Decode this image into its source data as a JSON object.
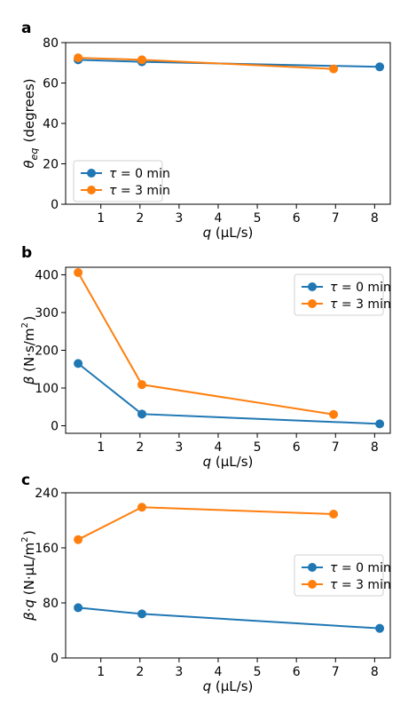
{
  "figure": {
    "colors": {
      "tau0": "#1f77b4",
      "tau3": "#ff7f0e"
    }
  },
  "chart_data": [
    {
      "type": "line",
      "panel_label": "a",
      "xlabel": "q (µL/s)",
      "ylabel": "θeq (degrees)",
      "xlim": [
        0.1,
        8.4
      ],
      "ylim": [
        0,
        80
      ],
      "xticks": [
        1,
        2,
        3,
        4,
        5,
        6,
        7,
        8
      ],
      "yticks": [
        0,
        20,
        40,
        60,
        80
      ],
      "legend": "lower-left",
      "series": [
        {
          "name": "τ = 0 min",
          "color": "#1f77b4",
          "x": [
            0.42,
            2.05,
            8.13
          ],
          "y": [
            71.5,
            70.5,
            68.0
          ]
        },
        {
          "name": "τ = 3 min",
          "color": "#ff7f0e",
          "x": [
            0.42,
            2.05,
            6.95
          ],
          "y": [
            72.5,
            71.5,
            67.0
          ]
        }
      ]
    },
    {
      "type": "line",
      "panel_label": "b",
      "xlabel": "q (µL/s)",
      "ylabel": "β (N·s/m2)",
      "xlim": [
        0.1,
        8.4
      ],
      "ylim": [
        -20,
        420
      ],
      "xticks": [
        1,
        2,
        3,
        4,
        5,
        6,
        7,
        8
      ],
      "yticks": [
        0,
        100,
        200,
        300,
        400
      ],
      "legend": "top-right",
      "series": [
        {
          "name": "τ = 0 min",
          "color": "#1f77b4",
          "x": [
            0.42,
            2.05,
            8.13
          ],
          "y": [
            165,
            31,
            5
          ]
        },
        {
          "name": "τ = 3 min",
          "color": "#ff7f0e",
          "x": [
            0.42,
            2.05,
            6.95
          ],
          "y": [
            406,
            109,
            30
          ]
        }
      ]
    },
    {
      "type": "line",
      "panel_label": "c",
      "xlabel": "q (µL/s)",
      "ylabel": "β·q (N·µL/m2)",
      "xlim": [
        0.1,
        8.4
      ],
      "ylim": [
        0,
        240
      ],
      "xticks": [
        1,
        2,
        3,
        4,
        5,
        6,
        7,
        8
      ],
      "yticks": [
        0,
        80,
        160,
        240
      ],
      "legend": "center-right",
      "series": [
        {
          "name": "τ = 0 min",
          "color": "#1f77b4",
          "x": [
            0.42,
            2.05,
            8.13
          ],
          "y": [
            73,
            64,
            43
          ]
        },
        {
          "name": "τ = 3 min",
          "color": "#ff7f0e",
          "x": [
            0.42,
            2.05,
            6.95
          ],
          "y": [
            172,
            219,
            209
          ]
        }
      ]
    }
  ]
}
